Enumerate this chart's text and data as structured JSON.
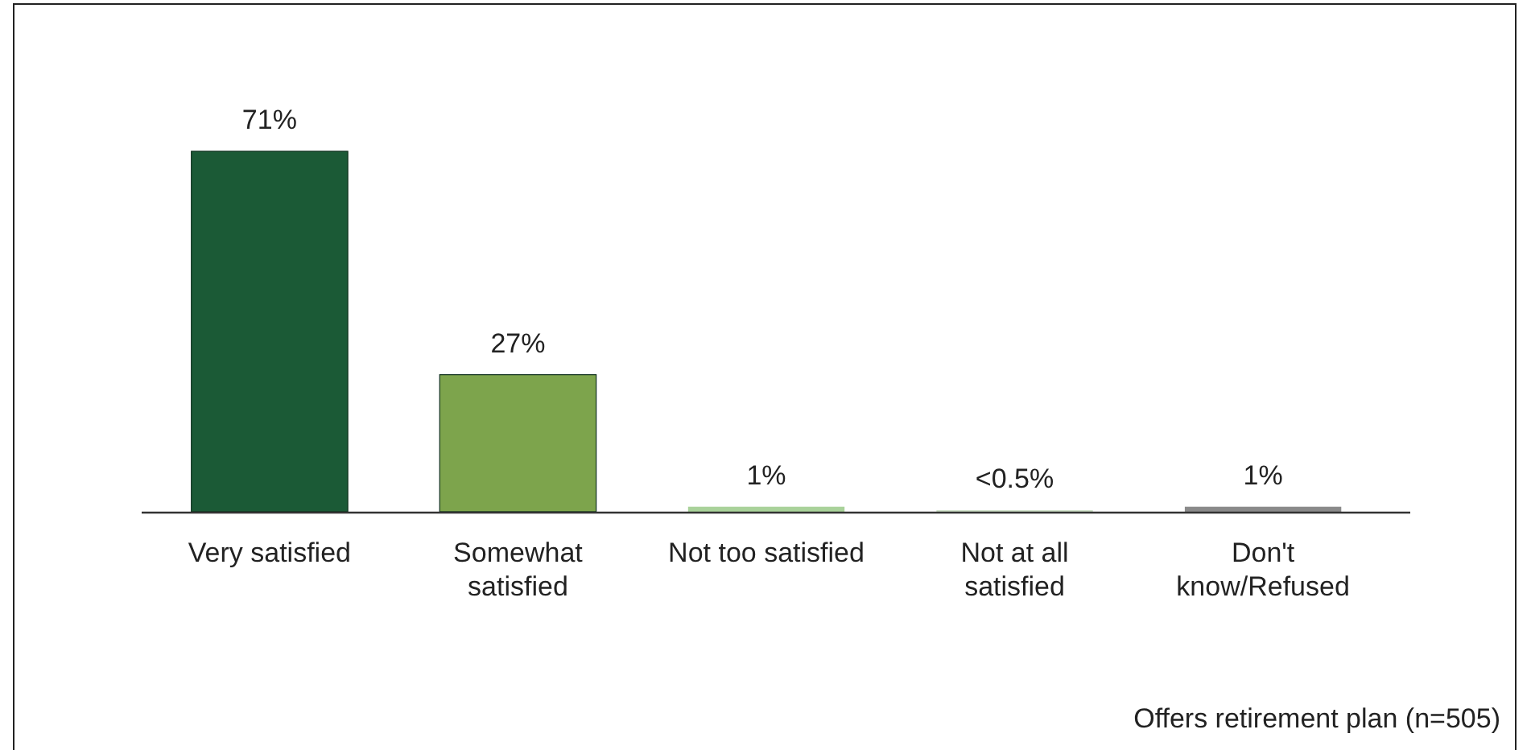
{
  "chart_data": {
    "type": "bar",
    "categories": [
      "Very satisfied",
      "Somewhat satisfied",
      "Not too satisfied",
      "Not at all satisfied",
      "Don't know/Refused"
    ],
    "values": [
      71,
      27,
      1,
      0.3,
      1
    ],
    "colors": [
      "#1b5a36",
      "#7da44c",
      "#a9d29a",
      "#c9dcc2",
      "#8a8a8a"
    ],
    "value_labels": [
      "71%",
      "27%",
      "1%",
      "<0.5%",
      "1%"
    ],
    "annotations": [
      "Offers retirement plan (n=505)"
    ]
  }
}
